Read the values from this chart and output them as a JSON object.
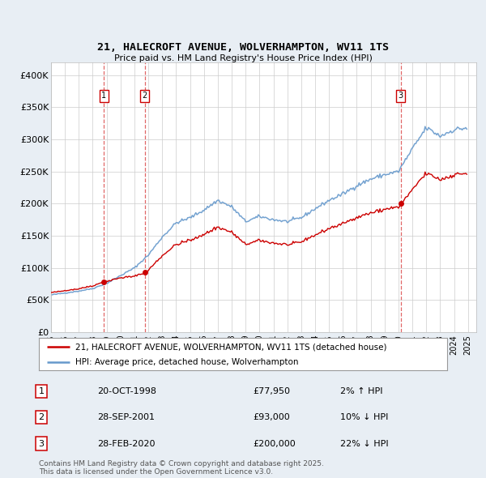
{
  "title": "21, HALECROFT AVENUE, WOLVERHAMPTON, WV11 1TS",
  "subtitle": "Price paid vs. HM Land Registry's House Price Index (HPI)",
  "sale_prices": [
    77950,
    93000,
    200000
  ],
  "sale_labels": [
    "1",
    "2",
    "3"
  ],
  "sale_dates_str": [
    "20-OCT-1998",
    "28-SEP-2001",
    "28-FEB-2020"
  ],
  "sale_pct": [
    "2% ↑ HPI",
    "10% ↓ HPI",
    "22% ↓ HPI"
  ],
  "legend_line1": "21, HALECROFT AVENUE, WOLVERHAMPTON, WV11 1TS (detached house)",
  "legend_line2": "HPI: Average price, detached house, Wolverhampton",
  "footer": "Contains HM Land Registry data © Crown copyright and database right 2025.\nThis data is licensed under the Open Government Licence v3.0.",
  "line_color": "#cc0000",
  "hpi_color": "#6699cc",
  "vline_color": "#cc0000",
  "background_color": "#e8eef4",
  "plot_bg": "#ffffff",
  "ylim": [
    0,
    420000
  ],
  "yticks": [
    0,
    50000,
    100000,
    150000,
    200000,
    250000,
    300000,
    350000,
    400000
  ],
  "ytick_labels": [
    "£0",
    "£50K",
    "£100K",
    "£150K",
    "£200K",
    "£250K",
    "£300K",
    "£350K",
    "£400K"
  ],
  "year_start": 1995,
  "year_end": 2025,
  "sale_date_dec": [
    1998.79,
    2001.74,
    2020.16
  ]
}
